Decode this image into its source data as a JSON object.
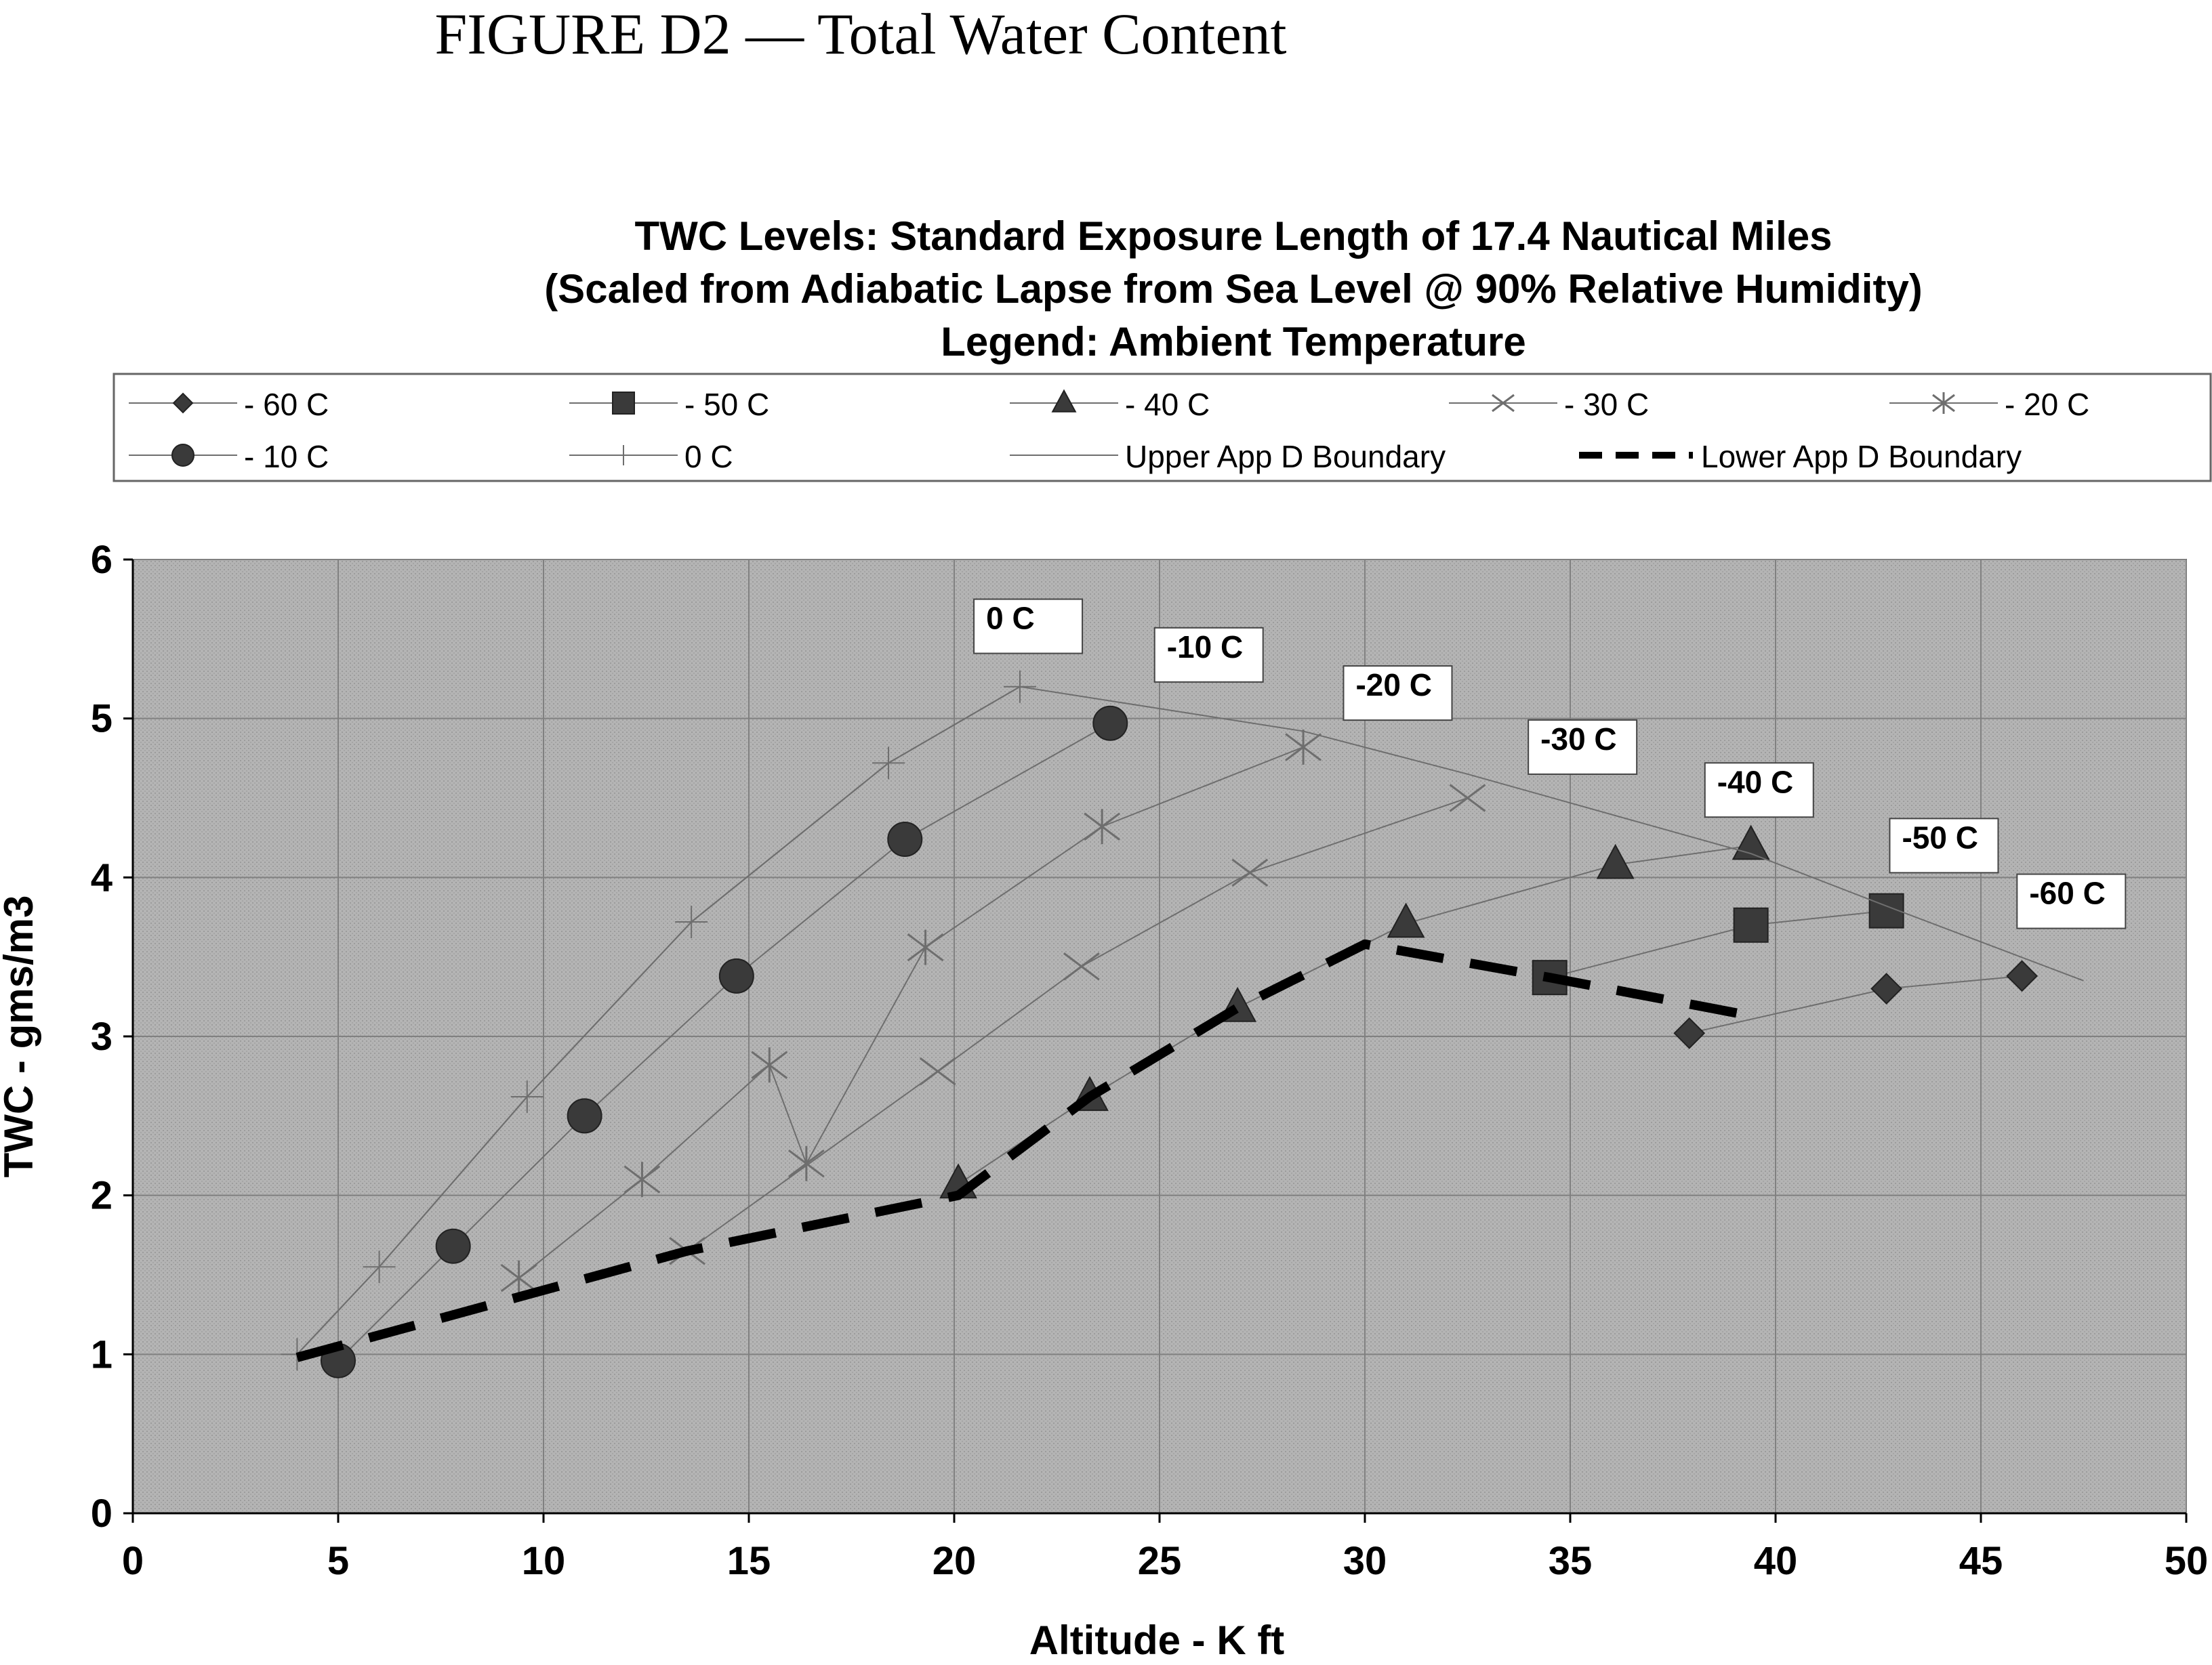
{
  "figure_title": "FIGURE D2 — Total Water Content",
  "chart_data": {
    "type": "line",
    "title_lines": [
      "TWC Levels:  Standard Exposure Length of 17.4 Nautical Miles",
      "(Scaled from Adiabatic Lapse from Sea Level @ 90% Relative Humidity)",
      "Legend:  Ambient Temperature"
    ],
    "xlabel": "Altitude - K ft",
    "ylabel": "TWC - gms/m3",
    "xlim": [
      0,
      50
    ],
    "ylim": [
      0,
      6
    ],
    "x_ticks": [
      "0",
      "5",
      "10",
      "15",
      "20",
      "25",
      "30",
      "35",
      "40",
      "45",
      "50"
    ],
    "y_ticks": [
      "0",
      "1",
      "2",
      "3",
      "4",
      "5",
      "6"
    ],
    "grid": true,
    "colors": {
      "plot_bg": "#b4b4b4",
      "grid": "#808080",
      "series_line": "#6e6e6e",
      "marker": "#3a3a3a",
      "boundary_lower": "#000000"
    },
    "series": [
      {
        "name": "- 60 C",
        "marker": "diamond",
        "x": [
          37.9,
          42.7,
          46.0
        ],
        "y": [
          3.02,
          3.3,
          3.38
        ]
      },
      {
        "name": "- 50 C",
        "marker": "square",
        "x": [
          34.5,
          39.4,
          42.7
        ],
        "y": [
          3.37,
          3.7,
          3.79
        ]
      },
      {
        "name": "- 40 C",
        "marker": "triangle",
        "x": [
          20.1,
          23.3,
          26.9,
          31.0,
          36.1,
          39.4
        ],
        "y": [
          2.07,
          2.62,
          3.18,
          3.71,
          4.08,
          4.2
        ]
      },
      {
        "name": "- 30 C",
        "marker": "x",
        "x": [
          13.5,
          19.6,
          23.1,
          27.2,
          32.5
        ],
        "y": [
          1.65,
          2.78,
          3.44,
          4.03,
          4.5
        ]
      },
      {
        "name": "- 20 C",
        "marker": "star",
        "x": [
          9.4,
          12.4,
          15.5,
          16.4,
          19.3,
          23.6,
          28.5
        ],
        "y": [
          1.48,
          2.1,
          2.82,
          2.2,
          3.56,
          4.32,
          4.82
        ]
      },
      {
        "name": "- 10 C",
        "marker": "circle",
        "x": [
          5.0,
          7.8,
          11.0,
          14.7,
          18.8,
          23.8
        ],
        "y": [
          0.96,
          1.68,
          2.5,
          3.38,
          4.24,
          4.97
        ]
      },
      {
        "name": "0 C",
        "marker": "plus",
        "x": [
          4.0,
          6.0,
          9.6,
          13.6,
          18.4,
          21.6
        ],
        "y": [
          1.0,
          1.55,
          2.62,
          3.72,
          4.72,
          5.2
        ]
      },
      {
        "name": "Upper App D Boundary",
        "marker": "none",
        "x": [
          4.0,
          6.0,
          9.6,
          13.6,
          18.4,
          21.6,
          28.5,
          32.5,
          39.4,
          42.7,
          47.5
        ],
        "y": [
          1.0,
          1.55,
          2.62,
          3.72,
          4.72,
          5.2,
          4.92,
          4.65,
          4.15,
          3.82,
          3.35
        ]
      },
      {
        "name": "Lower App D Boundary",
        "marker": "dashed",
        "x": [
          4.0,
          13.5,
          20.1,
          23.3,
          26.9,
          30.0,
          34.5,
          39.4
        ],
        "y": [
          0.98,
          1.65,
          2.0,
          2.62,
          3.18,
          3.58,
          3.37,
          3.13
        ]
      }
    ],
    "annotations": [
      {
        "text": "0 C",
        "x": 21.8,
        "y": 5.58
      },
      {
        "text": "-10 C",
        "x": 26.2,
        "y": 5.4
      },
      {
        "text": "-20 C",
        "x": 30.8,
        "y": 5.16
      },
      {
        "text": "-30 C",
        "x": 35.3,
        "y": 4.82
      },
      {
        "text": "-40 C",
        "x": 39.6,
        "y": 4.55
      },
      {
        "text": "-50 C",
        "x": 44.1,
        "y": 4.2
      },
      {
        "text": "-60 C",
        "x": 47.2,
        "y": 3.85
      }
    ]
  }
}
